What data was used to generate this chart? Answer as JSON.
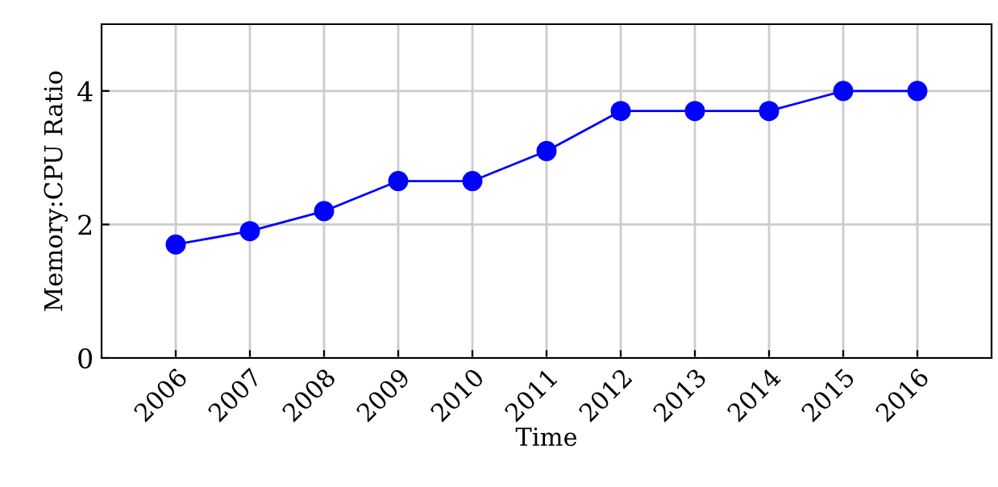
{
  "chart_data": {
    "type": "line",
    "xlabel": "Time",
    "ylabel": "Memory:CPU Ratio",
    "x": [
      2006,
      2007,
      2008,
      2009,
      2010,
      2011,
      2012,
      2013,
      2014,
      2015,
      2016
    ],
    "series": [
      {
        "color": "#0000ff",
        "values": [
          1.7,
          1.9,
          2.2,
          2.65,
          2.65,
          3.1,
          3.7,
          3.7,
          3.7,
          4.0,
          4.0
        ]
      }
    ],
    "xlim": [
      2005,
      2017
    ],
    "xticks": [
      2006,
      2007,
      2008,
      2009,
      2010,
      2011,
      2012,
      2013,
      2014,
      2015,
      2016
    ],
    "ylim": [
      0,
      5
    ],
    "yticks": [
      0,
      2,
      4
    ],
    "grid": true,
    "marker": "circle",
    "line_style": "solid"
  }
}
